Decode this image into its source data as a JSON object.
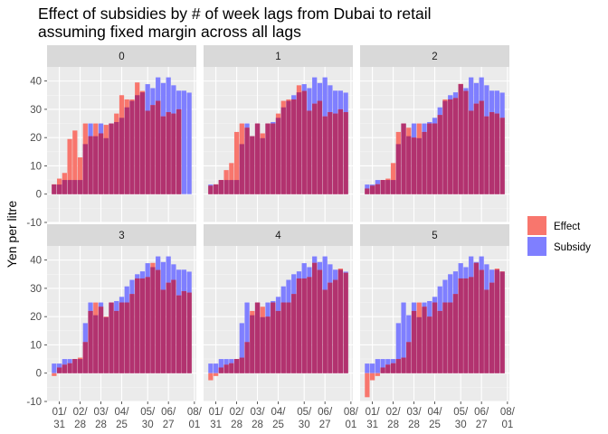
{
  "chart_data": {
    "type": "bar",
    "title": "Effect of subsidies by # of week lags from Dubai to retail\nassuming fixed margin across all lags",
    "ylabel": "Yen per litre",
    "xlabel": "",
    "ylim": [
      -10,
      45
    ],
    "yticks": [
      -10,
      0,
      10,
      20,
      30,
      40
    ],
    "xtick_labels": [
      "01/\n31",
      "02/\n28",
      "03/\n28",
      "04/\n25",
      "05/\n30",
      "06/\n27",
      "08/\n01"
    ],
    "legend": {
      "position": "right",
      "entries": [
        {
          "name": "Effect",
          "color": "#F8766D"
        },
        {
          "name": "Subsidy",
          "color": "#7F7FFF"
        }
      ]
    },
    "overlap_color": "#B2326F",
    "categories": [
      "01/24",
      "01/31",
      "02/07",
      "02/14",
      "02/21",
      "02/28",
      "03/07",
      "03/14",
      "03/21",
      "03/28",
      "04/04",
      "04/11",
      "04/18",
      "04/25",
      "05/02",
      "05/09",
      "05/16",
      "05/23",
      "05/30",
      "06/06",
      "06/13",
      "06/20",
      "06/27",
      "07/04",
      "07/11",
      "07/18",
      "07/25"
    ],
    "subsidy": [
      3.4,
      3.4,
      5,
      5,
      5,
      5,
      17.7,
      25,
      20.5,
      25,
      19.8,
      25,
      25.5,
      27,
      30.7,
      33,
      35,
      36,
      38.9,
      37.5,
      41.3,
      39.3,
      41.3,
      38.5,
      36.6,
      36.6,
      35.9
    ],
    "panels": [
      {
        "label": "0",
        "effect": [
          3.5,
          5.5,
          7.5,
          19.5,
          22.5,
          13.0,
          25.0,
          20.5,
          25.0,
          21.5,
          24.5,
          25.0,
          28.5,
          35.0,
          33.5,
          33.5,
          39.5,
          36.5,
          29.5,
          31.5,
          33.0,
          27.5,
          29.0,
          28.5,
          30.0,
          0.0,
          0.0
        ]
      },
      {
        "label": "1",
        "effect": [
          3.0,
          3.5,
          5.0,
          8.5,
          11.0,
          22.0,
          25.0,
          23.5,
          20.5,
          25.0,
          21.5,
          25.0,
          25.0,
          28.5,
          33.0,
          33.5,
          33.5,
          38.5,
          36.5,
          29.5,
          32.0,
          33.0,
          27.5,
          29.0,
          28.5,
          30.0,
          29.0
        ]
      },
      {
        "label": "2",
        "effect": [
          2.0,
          3.0,
          3.5,
          5.0,
          5.5,
          11.0,
          22.0,
          25.0,
          23.5,
          20.0,
          25.0,
          22.0,
          25.0,
          25.0,
          28.0,
          33.5,
          33.5,
          34.0,
          39.0,
          36.5,
          29.5,
          32.0,
          33.0,
          27.5,
          29.0,
          28.5,
          27.0
        ]
      },
      {
        "label": "3",
        "effect": [
          -1.0,
          2.0,
          3.0,
          3.5,
          5.0,
          5.5,
          11.0,
          22.0,
          25.0,
          23.5,
          20.0,
          25.0,
          22.0,
          25.0,
          25.0,
          28.0,
          33.5,
          33.5,
          34.0,
          39.0,
          36.5,
          29.5,
          32.0,
          33.0,
          27.5,
          29.0,
          28.5
        ]
      },
      {
        "label": "4",
        "effect": [
          -2.5,
          -1.0,
          2.0,
          3.0,
          3.5,
          5.0,
          5.5,
          11.0,
          22.0,
          25.0,
          23.5,
          20.0,
          25.0,
          22.0,
          25.0,
          25.0,
          28.0,
          33.5,
          33.5,
          34.0,
          39.0,
          36.5,
          29.5,
          32.0,
          33.0,
          37.0,
          35.5
        ]
      },
      {
        "label": "5",
        "effect": [
          -8.5,
          -2.5,
          -1.0,
          2.0,
          3.0,
          3.5,
          5.0,
          5.5,
          11.0,
          22.0,
          25.0,
          23.5,
          20.0,
          25.0,
          22.0,
          25.0,
          25.0,
          28.0,
          33.5,
          33.5,
          34.0,
          39.0,
          36.5,
          29.5,
          32.0,
          37.0,
          36.0
        ]
      }
    ]
  }
}
